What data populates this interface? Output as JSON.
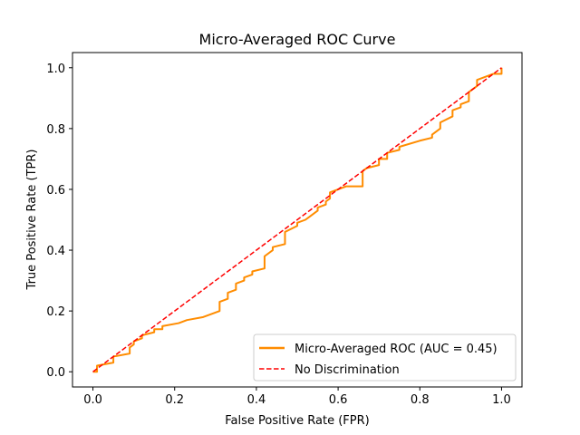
{
  "chart_data": {
    "type": "line",
    "title": "Micro-Averaged ROC Curve",
    "xlabel": "False Positive Rate (FPR)",
    "ylabel": "True Positive Rate (TPR)",
    "xlim": [
      -0.05,
      1.05
    ],
    "ylim": [
      -0.05,
      1.05
    ],
    "xticks": [
      "0.0",
      "0.2",
      "0.4",
      "0.6",
      "0.8",
      "1.0"
    ],
    "yticks": [
      "0.0",
      "0.2",
      "0.4",
      "0.6",
      "0.8",
      "1.0"
    ],
    "grid": false,
    "legend_position": "lower-right",
    "series": [
      {
        "name": "Micro-Averaged ROC (AUC = 0.45)",
        "color": "#ff8c00",
        "style": "solid",
        "x": [
          0.0,
          0.01,
          0.01,
          0.05,
          0.05,
          0.09,
          0.09,
          0.1,
          0.1,
          0.12,
          0.12,
          0.15,
          0.15,
          0.17,
          0.17,
          0.21,
          0.23,
          0.27,
          0.31,
          0.31,
          0.33,
          0.33,
          0.35,
          0.35,
          0.37,
          0.37,
          0.39,
          0.39,
          0.42,
          0.42,
          0.44,
          0.44,
          0.47,
          0.47,
          0.5,
          0.5,
          0.52,
          0.53,
          0.54,
          0.55,
          0.55,
          0.57,
          0.57,
          0.58,
          0.58,
          0.6,
          0.6,
          0.62,
          0.66,
          0.66,
          0.67,
          0.7,
          0.7,
          0.72,
          0.72,
          0.75,
          0.75,
          0.8,
          0.83,
          0.83,
          0.85,
          0.85,
          0.88,
          0.88,
          0.9,
          0.9,
          0.92,
          0.92,
          0.94,
          0.94,
          0.96,
          0.98,
          1.0,
          1.0
        ],
        "y": [
          0.0,
          0.0,
          0.02,
          0.03,
          0.05,
          0.06,
          0.08,
          0.09,
          0.1,
          0.11,
          0.12,
          0.13,
          0.14,
          0.14,
          0.15,
          0.16,
          0.17,
          0.18,
          0.2,
          0.23,
          0.24,
          0.26,
          0.27,
          0.29,
          0.3,
          0.31,
          0.32,
          0.33,
          0.34,
          0.38,
          0.4,
          0.41,
          0.42,
          0.46,
          0.48,
          0.49,
          0.5,
          0.51,
          0.52,
          0.53,
          0.54,
          0.55,
          0.56,
          0.57,
          0.59,
          0.6,
          0.6,
          0.61,
          0.61,
          0.66,
          0.67,
          0.68,
          0.7,
          0.7,
          0.72,
          0.73,
          0.74,
          0.76,
          0.77,
          0.78,
          0.8,
          0.82,
          0.84,
          0.86,
          0.87,
          0.88,
          0.89,
          0.92,
          0.94,
          0.96,
          0.97,
          0.98,
          0.98,
          1.0
        ]
      },
      {
        "name": "No Discrimination",
        "color": "#ff0000",
        "style": "dashed",
        "x": [
          0,
          1
        ],
        "y": [
          0,
          1
        ]
      }
    ]
  }
}
